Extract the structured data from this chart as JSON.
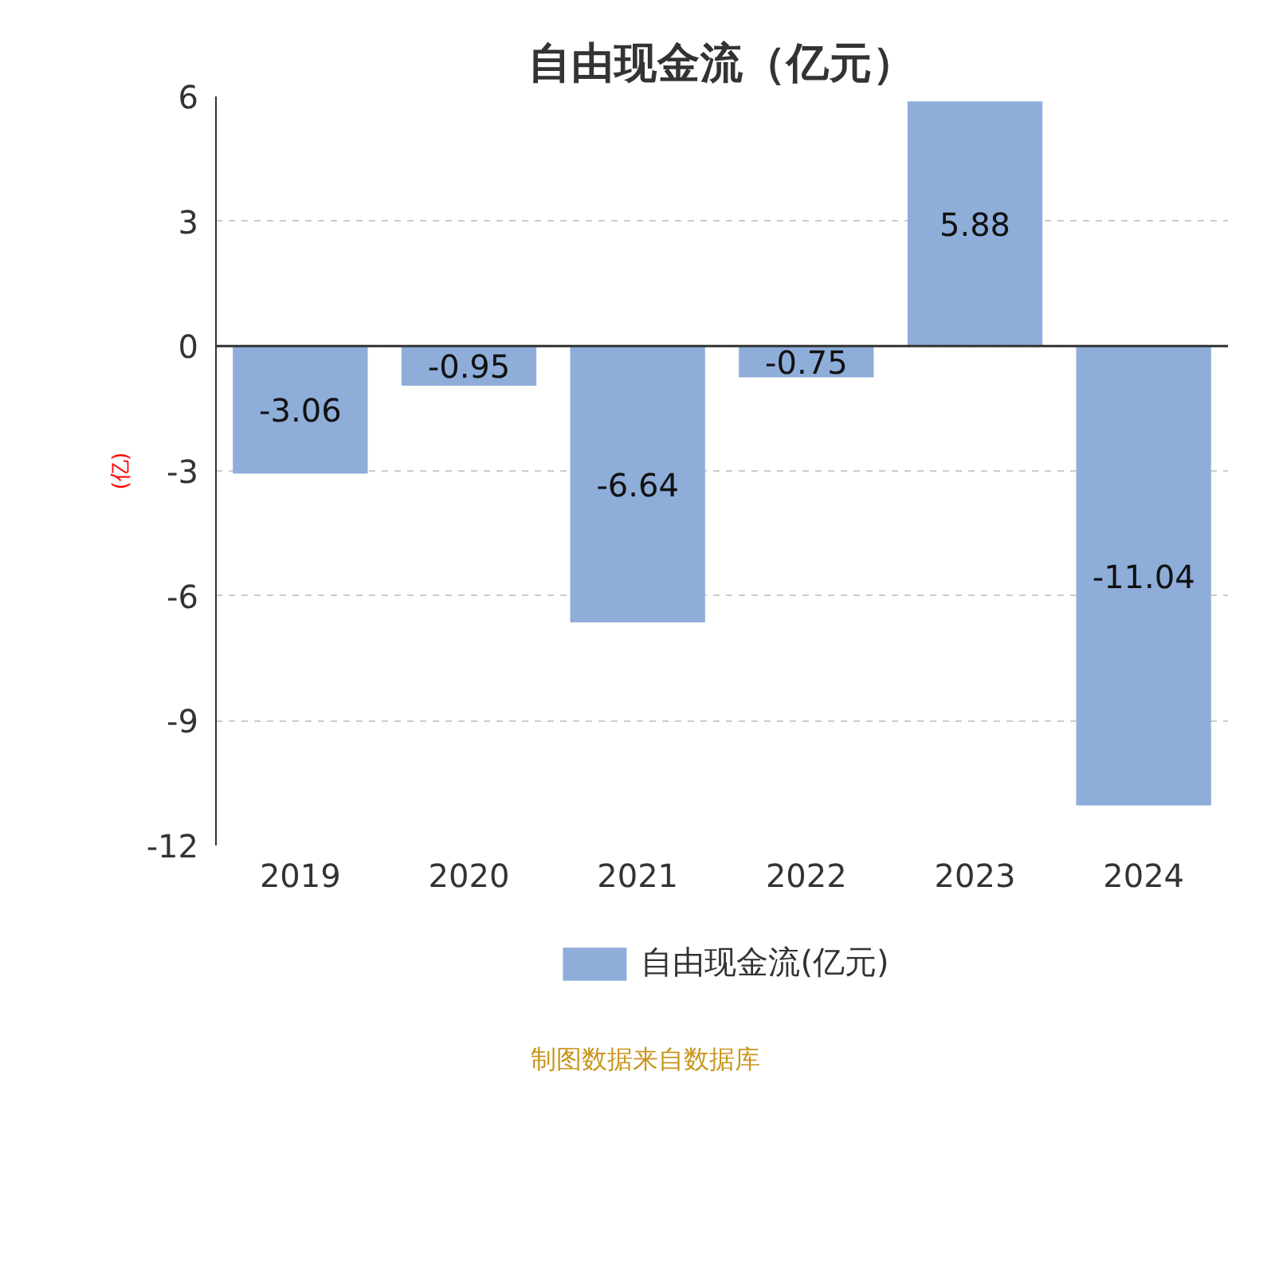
{
  "chart_data": {
    "type": "bar",
    "title": "自由现金流（亿元）",
    "ylabel": "(亿)",
    "categories": [
      "2019",
      "2020",
      "2021",
      "2022",
      "2023",
      "2024"
    ],
    "series": [
      {
        "name": "自由现金流(亿元)",
        "color": "#8eadd9",
        "values": [
          -3.06,
          -0.95,
          -6.64,
          -0.75,
          5.88,
          -11.04
        ]
      }
    ],
    "ylim": [
      -12,
      6
    ],
    "yticks": [
      -12,
      -9,
      -6,
      -3,
      0,
      3,
      6
    ],
    "grid": "y",
    "legend": "bottom",
    "data_labels": true,
    "annotations": [
      "制图数据来自数据库"
    ]
  }
}
